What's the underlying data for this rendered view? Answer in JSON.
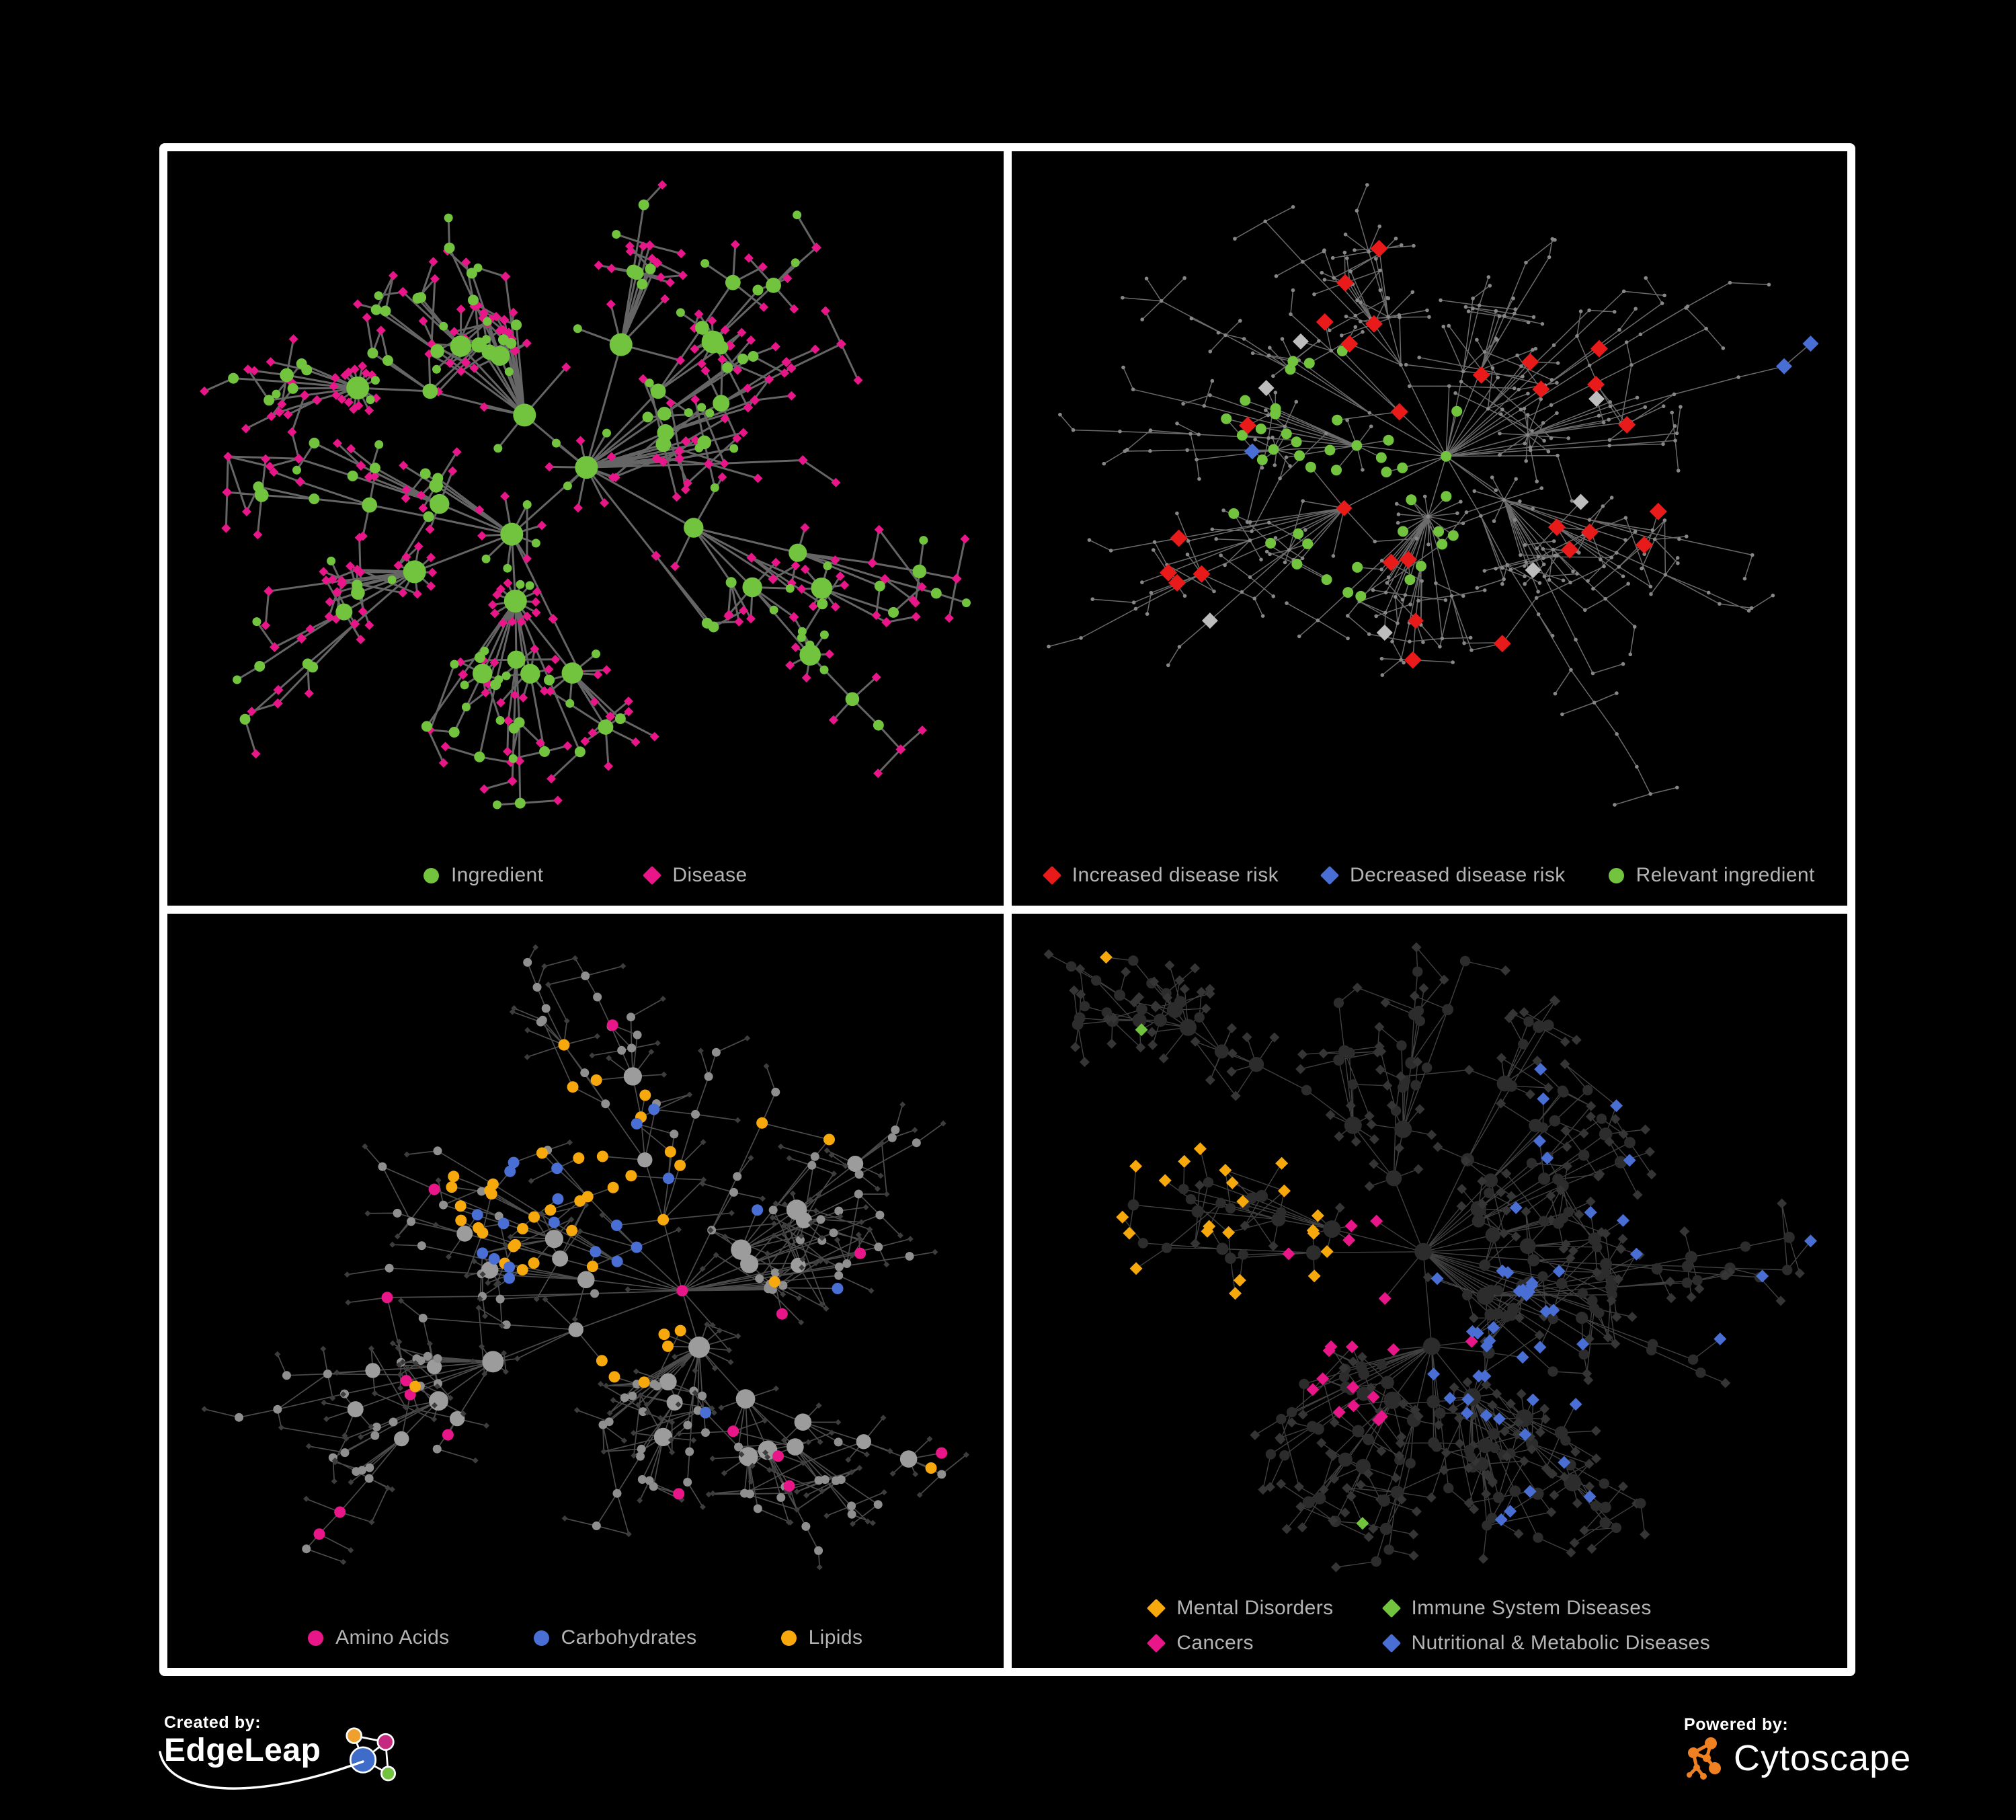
{
  "figure": {
    "background": "#000000",
    "frame_color": "#ffffff"
  },
  "panels": [
    {
      "id": "ingredient-disease",
      "legend": {
        "rows": [
          [
            {
              "label": "Ingredient",
              "shape": "circle",
              "color": "#72c33e"
            },
            {
              "label": "Disease",
              "shape": "diamond",
              "color": "#e9168a"
            }
          ]
        ]
      },
      "network": {
        "seed": 11,
        "nodes": 470,
        "mesh": 60,
        "edge_color": "#6a6a6a",
        "edge_width": 3,
        "edge_opacity": 0.95,
        "palette": {
          "ingredient": "#72c33e",
          "disease": "#e9168a"
        }
      }
    },
    {
      "id": "disease-risk",
      "legend": {
        "rows": [
          [
            {
              "label": "Increased disease risk",
              "shape": "diamond",
              "color": "#e81a1a"
            },
            {
              "label": "Decreased disease risk",
              "shape": "diamond",
              "color": "#4a6fd4"
            },
            {
              "label": "Relevant ingredient",
              "shape": "circle",
              "color": "#72c33e"
            }
          ]
        ]
      },
      "network": {
        "seed": 47,
        "nodes": 520,
        "mesh": 40,
        "edge_color": "#7e7e7e",
        "edge_width": 1.5,
        "edge_opacity": 0.85,
        "palette": {
          "base": "#878787",
          "increased": "#e81a1a",
          "decreased": "#4a6fd4",
          "ingredient": "#72c33e",
          "neutral": "#bdbdbd"
        }
      }
    },
    {
      "id": "macronutrients",
      "legend": {
        "rows": [
          [
            {
              "label": "Amino Acids",
              "shape": "circle",
              "color": "#e9168a"
            },
            {
              "label": "Carbohydrates",
              "shape": "circle",
              "color": "#4a6fd4"
            },
            {
              "label": "Lipids",
              "shape": "circle",
              "color": "#f7a80d"
            }
          ]
        ]
      },
      "network": {
        "seed": 83,
        "nodes": 500,
        "mesh": 110,
        "edge_color": "#969696",
        "edge_width": 1.7,
        "edge_opacity": 0.5,
        "palette": {
          "hub": "#9c9c9c",
          "mid": "#8f8f8f",
          "leaf": "#3d3d3d",
          "amino": "#e9168a",
          "carbo": "#4a6fd4",
          "lipid": "#f7a80d"
        }
      }
    },
    {
      "id": "disease-categories",
      "legend": {
        "rows": [
          [
            {
              "label": "Mental Disorders",
              "shape": "diamond",
              "color": "#f7a80d"
            },
            {
              "label": "Immune System Diseases",
              "shape": "diamond",
              "color": "#72c33e"
            }
          ],
          [
            {
              "label": "Cancers",
              "shape": "diamond",
              "color": "#e9168a"
            },
            {
              "label": "Nutritional & Metabolic Diseases",
              "shape": "diamond",
              "color": "#4a6fd4"
            }
          ]
        ]
      },
      "network": {
        "seed": 129,
        "nodes": 560,
        "mesh": 130,
        "edge_color": "#8d8d8d",
        "edge_width": 1.4,
        "edge_opacity": 0.45,
        "palette": {
          "leaf": "#353535",
          "hub": "#2c2c2c",
          "mental": "#f7a80d",
          "immune": "#72c33e",
          "cancer": "#e9168a",
          "nutritional": "#4a6fd4"
        }
      }
    }
  ],
  "footer": {
    "created_by": {
      "label": "Created by:",
      "brand": "EdgeLeap"
    },
    "powered_by": {
      "label": "Powered by:",
      "brand": "Cytoscape"
    }
  }
}
